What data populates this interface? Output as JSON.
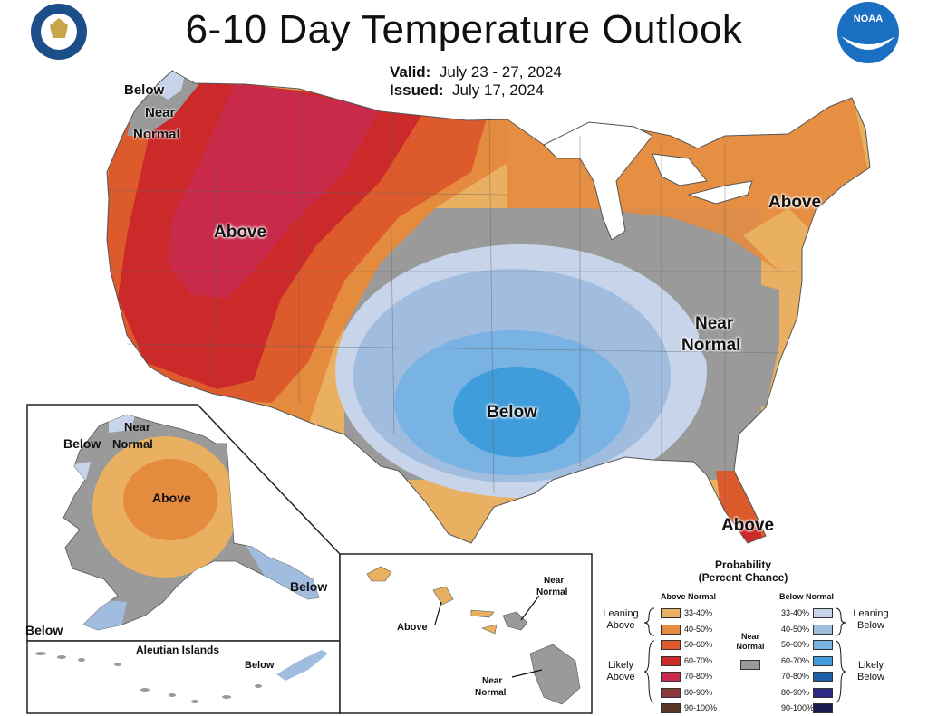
{
  "title": "6-10 Day Temperature Outlook",
  "valid_label": "Valid:",
  "valid_dates": "July 23 - 27, 2024",
  "issued_label": "Issued:",
  "issued_date": "July 17, 2024",
  "logos": {
    "left": "department-of-commerce-seal",
    "right": "noaa-logo",
    "right_text": "NOAA"
  },
  "conus_labels": {
    "nw_below": "Below",
    "nw_near": "Near",
    "nw_normal": "Normal",
    "west_above": "Above",
    "ne_above": "Above",
    "east_near": "Near",
    "east_normal": "Normal",
    "south_below": "Below",
    "fl_above": "Above"
  },
  "alaska_labels": {
    "near": "Near",
    "below": "Below",
    "normal": "Normal",
    "above": "Above",
    "se_below": "Below",
    "sw_below": "Below"
  },
  "aleutian": {
    "title": "Aleutian Islands",
    "below": "Below"
  },
  "hawaii": {
    "near1": "Near",
    "normal1": "Normal",
    "above": "Above",
    "near2": "Near",
    "normal2": "Normal"
  },
  "legend": {
    "title1": "Probability",
    "title2": "(Percent Chance)",
    "above_header": "Above Normal",
    "below_header": "Below Normal",
    "near1": "Near",
    "near2": "Normal",
    "leaning_above": [
      "Leaning",
      "Above"
    ],
    "likely_above": [
      "Likely",
      "Above"
    ],
    "leaning_below": [
      "Leaning",
      "Below"
    ],
    "likely_below": [
      "Likely",
      "Below"
    ],
    "ranges": [
      "33-40%",
      "40-50%",
      "50-60%",
      "60-70%",
      "70-80%",
      "80-90%",
      "90-100%"
    ],
    "above_colors": [
      "#e8b060",
      "#e58b3e",
      "#dd5a2c",
      "#cc2a2a",
      "#c92a4a",
      "#8a3a3a",
      "#5a3828"
    ],
    "below_colors": [
      "#c7d4ea",
      "#a0bde0",
      "#79b3e4",
      "#3f9ddc",
      "#1f5fa8",
      "#2a2a86",
      "#1c1c4e"
    ],
    "near_color": "#9a9a9a"
  }
}
